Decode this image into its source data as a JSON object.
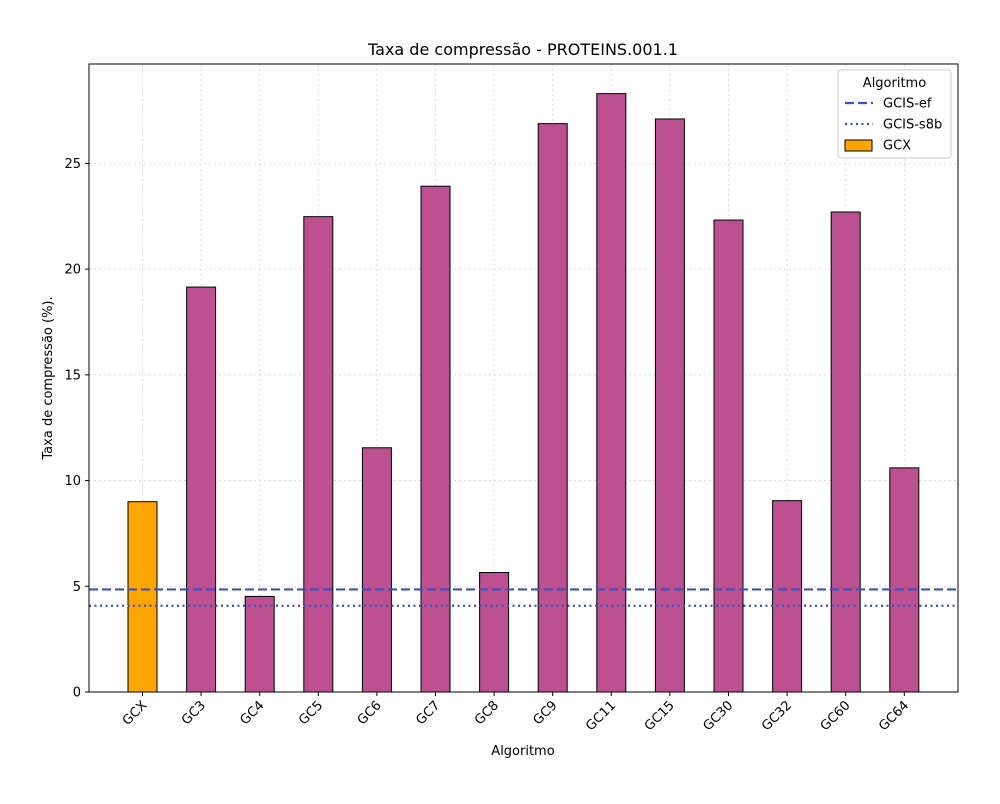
{
  "chart_data": {
    "type": "bar",
    "title": "Taxa de compressão -  PROTEINS.001.1",
    "xlabel": "Algoritmo",
    "ylabel": "Taxa de compressão (%).",
    "categories": [
      "GCX",
      "GC3",
      "GC4",
      "GC5",
      "GC6",
      "GC7",
      "GC8",
      "GC9",
      "GC11",
      "GC15",
      "GC30",
      "GC32",
      "GC60",
      "GC64"
    ],
    "values": [
      9.0,
      19.15,
      4.52,
      22.48,
      11.55,
      23.92,
      5.65,
      26.88,
      28.3,
      27.1,
      22.32,
      9.05,
      22.7,
      10.6
    ],
    "bar_colors": [
      "#ffa500",
      "#bd5090",
      "#bd5090",
      "#bd5090",
      "#bd5090",
      "#bd5090",
      "#bd5090",
      "#bd5090",
      "#bd5090",
      "#bd5090",
      "#bd5090",
      "#bd5090",
      "#bd5090",
      "#bd5090"
    ],
    "reference_lines": [
      {
        "name": "GCIS-ef",
        "value": 4.85,
        "style": "dashed",
        "color": "#3f4fbf"
      },
      {
        "name": "GCIS-s8b",
        "value": 4.08,
        "style": "dotted",
        "color": "#3f4fbf"
      }
    ],
    "ylim": [
      0,
      29.7
    ],
    "yticks": [
      0,
      5,
      10,
      15,
      20,
      25
    ],
    "grid": true,
    "legend": {
      "title": "Algoritmo",
      "placement": "top-right",
      "entries": [
        {
          "label": "GCIS-ef",
          "kind": "dashed",
          "color": "#3f4fbf"
        },
        {
          "label": "GCIS-s8b",
          "kind": "dotted",
          "color": "#3f4fbf"
        },
        {
          "label": "GCX",
          "kind": "patch",
          "color": "#ffa500"
        }
      ]
    }
  }
}
